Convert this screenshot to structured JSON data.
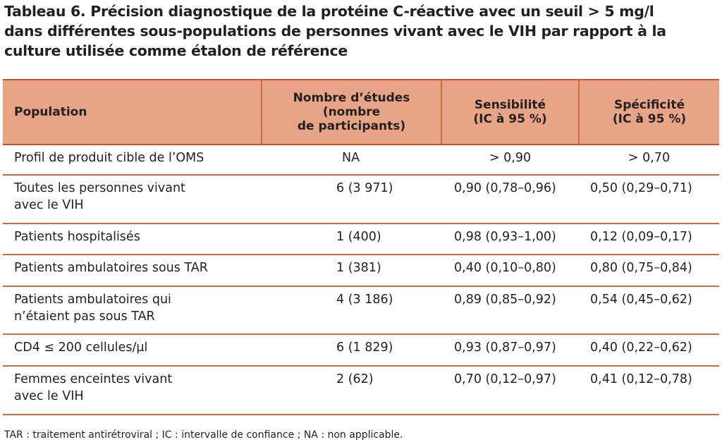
{
  "title": {
    "line1": "Tableau 6. Précision diagnostique de la protéine C-réactive avec un seuil > 5 mg/l",
    "line2": "dans différentes sous-populations de personnes vivant avec le VIH par rapport à la",
    "line3": "culture utilisée comme étalon de référence"
  },
  "table": {
    "headers": {
      "population": "Population",
      "studies_line1": "Nombre d’études",
      "studies_line2": "(nombre",
      "studies_line3": "de participants)",
      "sensitivity_line1": "Sensibilité",
      "sensitivity_line2": "(IC à 95 %)",
      "specificity_line1": "Spécificité",
      "specificity_line2": "(IC à 95 %)"
    },
    "rows": [
      {
        "population_line1": "Profil de produit cible de l’OMS",
        "population_line2": "",
        "studies": "NA",
        "sensitivity": "> 0,90",
        "specificity": "> 0,70"
      },
      {
        "population_line1": "Toutes les personnes vivant",
        "population_line2": "avec le VIH",
        "studies": "6 (3 971)",
        "sensitivity": "0,90 (0,78–0,96)",
        "specificity": "0,50 (0,29–0,71)"
      },
      {
        "population_line1": "Patients hospitalisés",
        "population_line2": "",
        "studies": "1 (400)",
        "sensitivity": "0,98 (0,93–1,00)",
        "specificity": "0,12 (0,09–0,17)"
      },
      {
        "population_line1": "Patients ambulatoires sous TAR",
        "population_line2": "",
        "studies": "1 (381)",
        "sensitivity": "0,40 (0,10–0,80)",
        "specificity": "0,80 (0,75–0,84)"
      },
      {
        "population_line1": "Patients ambulatoires qui",
        "population_line2": "n’étaient pas sous TAR",
        "studies": "4 (3 186)",
        "sensitivity": "0,89 (0,85–0,92)",
        "specificity": "0,54 (0,45–0,62)"
      },
      {
        "population_line1": "CD4 ≤ 200 cellules/µl",
        "population_line2": "",
        "studies": "6 (1 829)",
        "sensitivity": "0,93 (0,87–0,97)",
        "specificity": "0,40 (0,22–0,62)"
      },
      {
        "population_line1": "Femmes enceintes vivant",
        "population_line2": "avec le VIH",
        "studies": "2 (62)",
        "sensitivity": "0,70 (0,12–0,97)",
        "specificity": "0,41 (0,12–0,78)"
      }
    ]
  },
  "footnote": "TAR : traitement antirétroviral ; IC : intervalle de confiance ; NA : non applicable.",
  "colors": {
    "header_fill": "#e8a486",
    "rule": "#d2693f",
    "text": "#231f20"
  }
}
